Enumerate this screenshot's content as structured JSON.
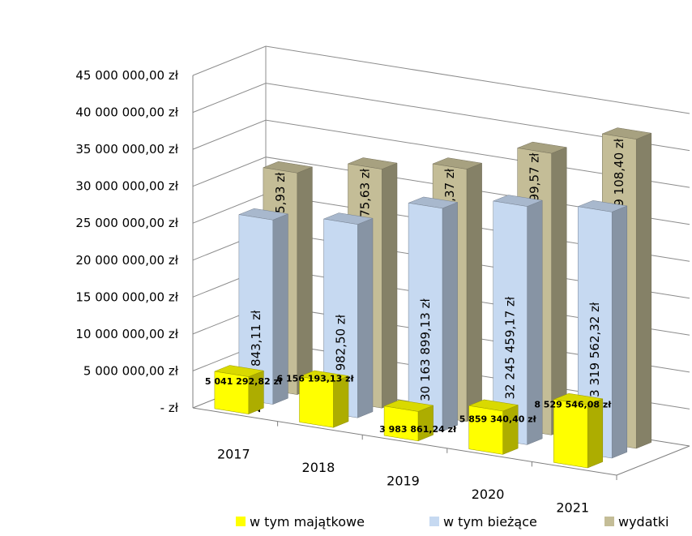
{
  "chart_data": {
    "type": "bar",
    "style": "3d-clustered-column",
    "categories": [
      "2017",
      "2018",
      "2019",
      "2020",
      "2021"
    ],
    "series": [
      {
        "name": "w tym majątkowe",
        "color": "#ffff00",
        "values": [
          5041292.82,
          6156193.13,
          3983861.24,
          5859340.4,
          8529546.08
        ],
        "labels": [
          "5 041 292,82 zł",
          "6 156 193,13 zł",
          "3 983 861,24 zł",
          "5 859 340,40 zł",
          "8 529 546,08 zł"
        ]
      },
      {
        "name": "w tym bieżące",
        "color": "#c6d9f1",
        "values": [
          24947843.11,
          26174982.5,
          30163899.13,
          32245459.17,
          33319562.32
        ],
        "labels": [
          "24 947 843,11 zł",
          "26 174 982,50 zł",
          "30 163 899,13 zł",
          "32 245 459,17 zł",
          "33 319 562,32 zł"
        ]
      },
      {
        "name": "wydatki",
        "color": "#c4bd97",
        "values": [
          29989135.93,
          32331175.63,
          34147760.37,
          38104799.57,
          41849108.4
        ],
        "labels": [
          "29 989 135,93 zł",
          "32 331 175,63 zł",
          "34 147 760,37 zł",
          "38 104 799,57 zł",
          "41 849 108,40 zł"
        ]
      }
    ],
    "ylim": [
      0,
      45000000
    ],
    "yticks": [
      0,
      5000000,
      10000000,
      15000000,
      20000000,
      25000000,
      30000000,
      35000000,
      40000000,
      45000000
    ],
    "ytick_labels": [
      "-   zł",
      "5 000 000,00 zł",
      "10 000 000,00 zł",
      "15 000 000,00 zł",
      "20 000 000,00 zł",
      "25 000 000,00 zł",
      "30 000 000,00 zł",
      "35 000 000,00 zł",
      "40 000 000,00 zł",
      "45 000 000,00 zł"
    ],
    "grid": true,
    "legend_position": "bottom-right"
  }
}
